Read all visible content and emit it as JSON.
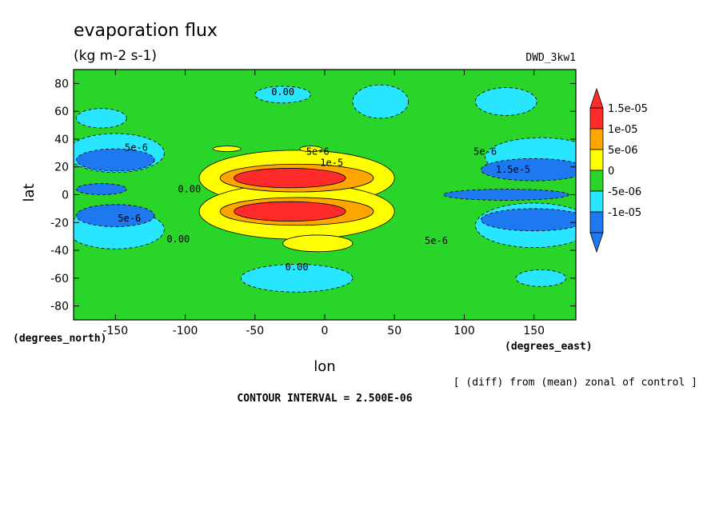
{
  "chart_data": {
    "type": "heatmap",
    "title": "evaporation flux",
    "units": "(kg m-2 s-1)",
    "dataset_label": "DWD_3kw1",
    "xlabel": "lon",
    "ylabel": "lat",
    "x_units_label": "(degrees_east)",
    "y_units_label": "(degrees_north)",
    "xlim": [
      -180,
      180
    ],
    "ylim": [
      -90,
      90
    ],
    "x_ticks": [
      -150,
      -100,
      -50,
      0,
      50,
      100,
      150
    ],
    "y_ticks": [
      -80,
      -60,
      -40,
      -20,
      0,
      20,
      40,
      60,
      80
    ],
    "x_tick_labels": [
      "-150",
      "-100",
      "-50",
      "0",
      "50",
      "100",
      "150"
    ],
    "y_tick_labels": [
      "-80",
      "-60",
      "-40",
      "-20",
      "0",
      "20",
      "40",
      "60",
      "80"
    ],
    "colorbar": {
      "levels": [
        -1.5e-05,
        -1e-05,
        -5e-06,
        0,
        5e-06,
        1e-05,
        1.5e-05
      ],
      "labels": [
        "-1e-05",
        "-5e-06",
        "0",
        "5e-06",
        "1e-05",
        "1.5e-05"
      ],
      "colors": [
        "#1e78f0",
        "#28e6ff",
        "#2ad52a",
        "#ffff00",
        "#ffa500",
        "#ff2a2a"
      ],
      "extend": "both"
    },
    "contour_interval_text": "CONTOUR INTERVAL = 2.500E-06",
    "note": "[ (diff) from (mean) zonal of control ]",
    "contour_labels": [
      {
        "text": "0.00",
        "lon": -30,
        "lat": 74
      },
      {
        "text": "0.00",
        "lon": -105,
        "lat": -32
      },
      {
        "text": "0.00",
        "lon": -20,
        "lat": -52
      },
      {
        "text": "0.00",
        "lon": -97,
        "lat": 4
      },
      {
        "text": "5e-6",
        "lon": -135,
        "lat": 34
      },
      {
        "text": "5e-6",
        "lon": -140,
        "lat": -17
      },
      {
        "text": "5e-6",
        "lon": -5,
        "lat": 31
      },
      {
        "text": "1e-5",
        "lon": 5,
        "lat": 23
      },
      {
        "text": "5e-6",
        "lon": 80,
        "lat": -33
      },
      {
        "text": "1.5e-5",
        "lon": 135,
        "lat": 18
      },
      {
        "text": "5e-6",
        "lon": 115,
        "lat": 31
      }
    ],
    "regions": [
      {
        "level": 0,
        "sign": 1,
        "lon": -30,
        "lat": 72,
        "rx": 20,
        "ry": 6
      },
      {
        "level": 0,
        "sign": 1,
        "lon": 40,
        "lat": 67,
        "rx": 20,
        "ry": 12
      },
      {
        "level": 0,
        "sign": 1,
        "lon": 130,
        "lat": 67,
        "rx": 22,
        "ry": 10
      },
      {
        "level": 0,
        "sign": 1,
        "lon": -160,
        "lat": 55,
        "rx": 18,
        "ry": 7
      },
      {
        "level": 0,
        "sign": 1,
        "lon": -150,
        "lat": 30,
        "rx": 35,
        "ry": 14
      },
      {
        "level": 0,
        "sign": 1,
        "lon": 155,
        "lat": 27,
        "rx": 40,
        "ry": 14
      },
      {
        "level": 0,
        "sign": 1,
        "lon": 150,
        "lat": -22,
        "rx": 42,
        "ry": 16
      },
      {
        "level": 0,
        "sign": 1,
        "lon": -150,
        "lat": -25,
        "rx": 35,
        "ry": 14
      },
      {
        "level": 0,
        "sign": 1,
        "lon": -20,
        "lat": -60,
        "rx": 40,
        "ry": 10
      },
      {
        "level": 0,
        "sign": 1,
        "lon": 155,
        "lat": -60,
        "rx": 18,
        "ry": 6
      },
      {
        "level": 1,
        "sign": 1,
        "lon": -150,
        "lat": 25,
        "rx": 28,
        "ry": 8
      },
      {
        "level": 1,
        "sign": 1,
        "lon": -150,
        "lat": -15,
        "rx": 28,
        "ry": 8
      },
      {
        "level": 1,
        "sign": 1,
        "lon": -160,
        "lat": 4,
        "rx": 18,
        "ry": 4
      },
      {
        "level": 1,
        "sign": 1,
        "lon": 150,
        "lat": 18,
        "rx": 38,
        "ry": 8
      },
      {
        "level": 1,
        "sign": 1,
        "lon": 150,
        "lat": -18,
        "rx": 38,
        "ry": 8
      },
      {
        "level": 1,
        "sign": 1,
        "lon": 130,
        "lat": 0,
        "rx": 45,
        "ry": 4
      },
      {
        "level": 0,
        "sign": -1,
        "lon": -20,
        "lat": 12,
        "rx": 70,
        "ry": 20
      },
      {
        "level": 0,
        "sign": -1,
        "lon": -20,
        "lat": -12,
        "rx": 70,
        "ry": 20
      },
      {
        "level": 0,
        "sign": -1,
        "lon": -5,
        "lat": -35,
        "rx": 25,
        "ry": 6
      },
      {
        "level": 0,
        "sign": -1,
        "lon": -10,
        "lat": 33,
        "rx": 8,
        "ry": 2
      },
      {
        "level": 0,
        "sign": -1,
        "lon": -70,
        "lat": 33,
        "rx": 10,
        "ry": 2
      },
      {
        "level": 1,
        "sign": -1,
        "lon": -20,
        "lat": 12,
        "rx": 55,
        "ry": 10
      },
      {
        "level": 1,
        "sign": -1,
        "lon": -20,
        "lat": -12,
        "rx": 55,
        "ry": 10
      },
      {
        "level": 2,
        "sign": -1,
        "lon": -25,
        "lat": 12,
        "rx": 40,
        "ry": 7
      },
      {
        "level": 2,
        "sign": -1,
        "lon": -25,
        "lat": -12,
        "rx": 40,
        "ry": 7
      }
    ]
  }
}
